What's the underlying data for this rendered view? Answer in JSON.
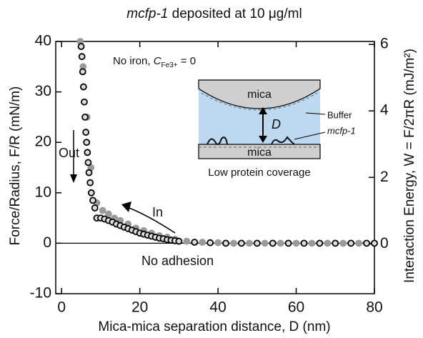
{
  "chart_data": {
    "type": "scatter",
    "title": [
      "mcfp-1",
      "deposited at 10 μg/ml"
    ],
    "x_label": "Mica-mica separation distance, D (nm)",
    "y_label": "Force/Radius, F/R (mN/m)",
    "y2_label": "Interaction Energy, W = F/2πR (mJ/m²)",
    "xlim": [
      -1.5,
      80
    ],
    "xticks": [
      0,
      20,
      40,
      60,
      80
    ],
    "ylim": [
      -10,
      40
    ],
    "yticks": [
      -10,
      0,
      10,
      20,
      30,
      40
    ],
    "y2lim": [
      -1.5,
      6.09
    ],
    "y2ticks": [
      0,
      2,
      4,
      6
    ],
    "annotations": {
      "condition": "No iron,",
      "c": "C",
      "c_sub": "Fe3+",
      "c_eq": "= 0",
      "out": "Out",
      "in": "In",
      "adhesion": "No adhesion"
    },
    "inset": {
      "mica_top": "mica",
      "mica_bottom": "mica",
      "d": "D",
      "buffer": "Buffer",
      "protein": "mcfp-1",
      "caption": "Low protein coverage"
    },
    "series": [
      {
        "color": "#9a9a9a",
        "x": [
          4.8,
          5.5,
          6.5,
          7.5,
          9,
          10.5,
          12,
          13.5,
          15,
          17,
          19,
          21,
          23,
          25,
          27,
          29,
          32,
          36,
          40,
          44,
          48,
          52,
          56,
          60,
          64,
          68,
          72,
          76
        ],
        "values": [
          40,
          35,
          25,
          15,
          8,
          6.5,
          5.8,
          5,
          4.5,
          3.8,
          3,
          2.5,
          2,
          1.5,
          1.2,
          0.8,
          0.4,
          0.2,
          0.1,
          0,
          0,
          0,
          0,
          0,
          0,
          0,
          0,
          0
        ]
      },
      {
        "color": "#000000",
        "x": [
          5,
          5.2,
          5.4,
          5.6,
          5.8,
          6,
          6.2,
          6.4,
          6.6,
          6.8,
          7,
          7.3,
          7.6,
          8,
          8.5,
          9,
          10,
          11,
          12,
          13,
          14,
          15,
          16,
          17,
          18,
          19,
          20,
          21,
          22,
          23,
          24,
          25,
          26,
          27,
          28,
          29,
          30,
          34,
          38,
          42,
          46,
          50,
          54,
          58,
          62,
          66,
          70,
          74,
          78,
          80
        ],
        "values": [
          39,
          37,
          34,
          31,
          28,
          25,
          22,
          20,
          18,
          16,
          14,
          12,
          10,
          8.5,
          7,
          5,
          5,
          4.8,
          4.5,
          4.2,
          3.8,
          3.5,
          3.2,
          2.9,
          2.6,
          2.3,
          2,
          1.8,
          1.6,
          1.4,
          1.2,
          1,
          0.9,
          0.7,
          0.6,
          0.5,
          0.4,
          0.2,
          0.1,
          0,
          0,
          0,
          0,
          0,
          0,
          0,
          0,
          0,
          0,
          0
        ]
      }
    ]
  }
}
